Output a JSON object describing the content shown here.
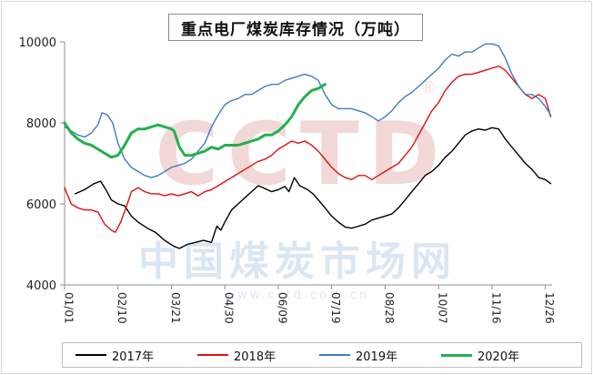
{
  "watermark": {
    "brand": "CCTD",
    "registered": "®",
    "chinese": "中国煤炭市场网",
    "url": "www.cctd.com.cn"
  },
  "chart_data": {
    "type": "line",
    "title": "重点电厂煤炭库存情况（万吨）",
    "xlabel": "",
    "ylabel": "",
    "ylim": [
      4000,
      10000
    ],
    "yticks": [
      4000,
      6000,
      8000,
      10000
    ],
    "ytick_labels": [
      "4000",
      "6000",
      "8000",
      "10000"
    ],
    "xlim": [
      0,
      365
    ],
    "xticks": [
      0,
      40,
      80,
      120,
      160,
      200,
      240,
      280,
      320,
      360
    ],
    "xtick_labels": [
      "01/01",
      "02/10",
      "03/21",
      "04/30",
      "06/09",
      "07/19",
      "08/28",
      "10/07",
      "11/16",
      "12/26"
    ],
    "grid": false,
    "legend_position": "bottom",
    "series": [
      {
        "name": "2017年",
        "color": "#000000",
        "points": [
          [
            8,
            6250
          ],
          [
            15,
            6350
          ],
          [
            22,
            6500
          ],
          [
            27,
            6560
          ],
          [
            31,
            6350
          ],
          [
            35,
            6100
          ],
          [
            40,
            6000
          ],
          [
            45,
            5950
          ],
          [
            50,
            5700
          ],
          [
            55,
            5550
          ],
          [
            62,
            5400
          ],
          [
            68,
            5300
          ],
          [
            75,
            5100
          ],
          [
            82,
            4950
          ],
          [
            86,
            4900
          ],
          [
            92,
            5000
          ],
          [
            98,
            5050
          ],
          [
            104,
            5100
          ],
          [
            110,
            5050
          ],
          [
            114,
            5450
          ],
          [
            117,
            5350
          ],
          [
            120,
            5550
          ],
          [
            125,
            5850
          ],
          [
            130,
            6000
          ],
          [
            135,
            6150
          ],
          [
            140,
            6300
          ],
          [
            145,
            6450
          ],
          [
            150,
            6380
          ],
          [
            155,
            6300
          ],
          [
            160,
            6350
          ],
          [
            165,
            6430
          ],
          [
            168,
            6300
          ],
          [
            172,
            6650
          ],
          [
            176,
            6450
          ],
          [
            182,
            6350
          ],
          [
            186,
            6250
          ],
          [
            190,
            6100
          ],
          [
            195,
            5900
          ],
          [
            200,
            5700
          ],
          [
            205,
            5550
          ],
          [
            210,
            5430
          ],
          [
            215,
            5400
          ],
          [
            220,
            5450
          ],
          [
            225,
            5500
          ],
          [
            230,
            5600
          ],
          [
            235,
            5650
          ],
          [
            240,
            5700
          ],
          [
            245,
            5750
          ],
          [
            250,
            5900
          ],
          [
            255,
            6100
          ],
          [
            260,
            6300
          ],
          [
            265,
            6500
          ],
          [
            270,
            6700
          ],
          [
            275,
            6800
          ],
          [
            280,
            6950
          ],
          [
            285,
            7150
          ],
          [
            290,
            7300
          ],
          [
            295,
            7500
          ],
          [
            300,
            7700
          ],
          [
            305,
            7800
          ],
          [
            310,
            7850
          ],
          [
            315,
            7820
          ],
          [
            320,
            7880
          ],
          [
            325,
            7850
          ],
          [
            330,
            7600
          ],
          [
            335,
            7400
          ],
          [
            340,
            7200
          ],
          [
            345,
            7000
          ],
          [
            350,
            6850
          ],
          [
            355,
            6650
          ],
          [
            360,
            6600
          ],
          [
            364,
            6500
          ]
        ]
      },
      {
        "name": "2018年",
        "color": "#e01010",
        "points": [
          [
            0,
            6400
          ],
          [
            5,
            6000
          ],
          [
            10,
            5900
          ],
          [
            15,
            5850
          ],
          [
            20,
            5850
          ],
          [
            25,
            5800
          ],
          [
            30,
            5500
          ],
          [
            35,
            5350
          ],
          [
            38,
            5300
          ],
          [
            42,
            5550
          ],
          [
            46,
            5900
          ],
          [
            50,
            6300
          ],
          [
            55,
            6400
          ],
          [
            60,
            6300
          ],
          [
            65,
            6250
          ],
          [
            70,
            6250
          ],
          [
            75,
            6200
          ],
          [
            80,
            6250
          ],
          [
            85,
            6200
          ],
          [
            90,
            6250
          ],
          [
            95,
            6300
          ],
          [
            100,
            6200
          ],
          [
            105,
            6300
          ],
          [
            110,
            6350
          ],
          [
            115,
            6450
          ],
          [
            120,
            6550
          ],
          [
            125,
            6650
          ],
          [
            130,
            6750
          ],
          [
            135,
            6850
          ],
          [
            140,
            6950
          ],
          [
            145,
            7050
          ],
          [
            150,
            7100
          ],
          [
            155,
            7200
          ],
          [
            160,
            7350
          ],
          [
            165,
            7450
          ],
          [
            170,
            7550
          ],
          [
            175,
            7500
          ],
          [
            180,
            7550
          ],
          [
            185,
            7450
          ],
          [
            190,
            7300
          ],
          [
            195,
            7100
          ],
          [
            200,
            6900
          ],
          [
            205,
            6750
          ],
          [
            210,
            6650
          ],
          [
            215,
            6600
          ],
          [
            220,
            6700
          ],
          [
            225,
            6700
          ],
          [
            230,
            6600
          ],
          [
            235,
            6700
          ],
          [
            240,
            6800
          ],
          [
            245,
            6900
          ],
          [
            250,
            7000
          ],
          [
            255,
            7200
          ],
          [
            260,
            7400
          ],
          [
            265,
            7700
          ],
          [
            270,
            8000
          ],
          [
            275,
            8300
          ],
          [
            280,
            8500
          ],
          [
            285,
            8800
          ],
          [
            290,
            9000
          ],
          [
            295,
            9150
          ],
          [
            300,
            9200
          ],
          [
            305,
            9200
          ],
          [
            310,
            9250
          ],
          [
            315,
            9300
          ],
          [
            320,
            9350
          ],
          [
            325,
            9400
          ],
          [
            330,
            9300
          ],
          [
            335,
            9100
          ],
          [
            340,
            8900
          ],
          [
            345,
            8700
          ],
          [
            350,
            8600
          ],
          [
            355,
            8700
          ],
          [
            360,
            8600
          ],
          [
            364,
            8150
          ]
        ]
      },
      {
        "name": "2019年",
        "color": "#3e7cc2",
        "points": [
          [
            0,
            7900
          ],
          [
            5,
            7800
          ],
          [
            10,
            7700
          ],
          [
            15,
            7650
          ],
          [
            20,
            7750
          ],
          [
            25,
            7950
          ],
          [
            28,
            8250
          ],
          [
            32,
            8200
          ],
          [
            36,
            8000
          ],
          [
            40,
            7500
          ],
          [
            45,
            7100
          ],
          [
            50,
            6900
          ],
          [
            55,
            6800
          ],
          [
            60,
            6700
          ],
          [
            65,
            6650
          ],
          [
            70,
            6700
          ],
          [
            75,
            6800
          ],
          [
            80,
            6900
          ],
          [
            85,
            6950
          ],
          [
            90,
            7000
          ],
          [
            95,
            7100
          ],
          [
            100,
            7300
          ],
          [
            105,
            7500
          ],
          [
            110,
            7900
          ],
          [
            115,
            8200
          ],
          [
            120,
            8450
          ],
          [
            125,
            8550
          ],
          [
            130,
            8600
          ],
          [
            135,
            8700
          ],
          [
            140,
            8700
          ],
          [
            145,
            8800
          ],
          [
            150,
            8900
          ],
          [
            155,
            8950
          ],
          [
            160,
            8950
          ],
          [
            165,
            9050
          ],
          [
            170,
            9100
          ],
          [
            175,
            9150
          ],
          [
            180,
            9200
          ],
          [
            185,
            9150
          ],
          [
            190,
            9050
          ],
          [
            195,
            8700
          ],
          [
            200,
            8450
          ],
          [
            205,
            8350
          ],
          [
            210,
            8350
          ],
          [
            215,
            8350
          ],
          [
            220,
            8300
          ],
          [
            225,
            8250
          ],
          [
            230,
            8150
          ],
          [
            235,
            8050
          ],
          [
            240,
            8150
          ],
          [
            245,
            8300
          ],
          [
            250,
            8500
          ],
          [
            255,
            8650
          ],
          [
            260,
            8750
          ],
          [
            265,
            8900
          ],
          [
            270,
            9050
          ],
          [
            275,
            9200
          ],
          [
            280,
            9350
          ],
          [
            285,
            9550
          ],
          [
            290,
            9700
          ],
          [
            295,
            9650
          ],
          [
            300,
            9750
          ],
          [
            305,
            9750
          ],
          [
            310,
            9850
          ],
          [
            315,
            9950
          ],
          [
            320,
            9950
          ],
          [
            325,
            9900
          ],
          [
            330,
            9600
          ],
          [
            335,
            9200
          ],
          [
            340,
            8900
          ],
          [
            345,
            8700
          ],
          [
            350,
            8700
          ],
          [
            355,
            8600
          ],
          [
            360,
            8400
          ],
          [
            364,
            8200
          ]
        ]
      },
      {
        "name": "2020年",
        "color": "#22b14c",
        "points": [
          [
            0,
            8000
          ],
          [
            5,
            7750
          ],
          [
            10,
            7600
          ],
          [
            15,
            7500
          ],
          [
            20,
            7450
          ],
          [
            25,
            7350
          ],
          [
            30,
            7250
          ],
          [
            35,
            7150
          ],
          [
            40,
            7200
          ],
          [
            45,
            7450
          ],
          [
            50,
            7750
          ],
          [
            55,
            7850
          ],
          [
            60,
            7850
          ],
          [
            65,
            7900
          ],
          [
            70,
            7950
          ],
          [
            75,
            7900
          ],
          [
            80,
            7850
          ],
          [
            82,
            7800
          ],
          [
            86,
            7400
          ],
          [
            90,
            7200
          ],
          [
            95,
            7200
          ],
          [
            100,
            7250
          ],
          [
            105,
            7300
          ],
          [
            110,
            7400
          ],
          [
            115,
            7350
          ],
          [
            120,
            7450
          ],
          [
            125,
            7450
          ],
          [
            130,
            7450
          ],
          [
            135,
            7500
          ],
          [
            140,
            7550
          ],
          [
            145,
            7600
          ],
          [
            150,
            7700
          ],
          [
            155,
            7700
          ],
          [
            160,
            7800
          ],
          [
            165,
            7950
          ],
          [
            170,
            8150
          ],
          [
            175,
            8450
          ],
          [
            180,
            8650
          ],
          [
            185,
            8800
          ],
          [
            190,
            8850
          ],
          [
            195,
            8950
          ]
        ]
      }
    ]
  }
}
